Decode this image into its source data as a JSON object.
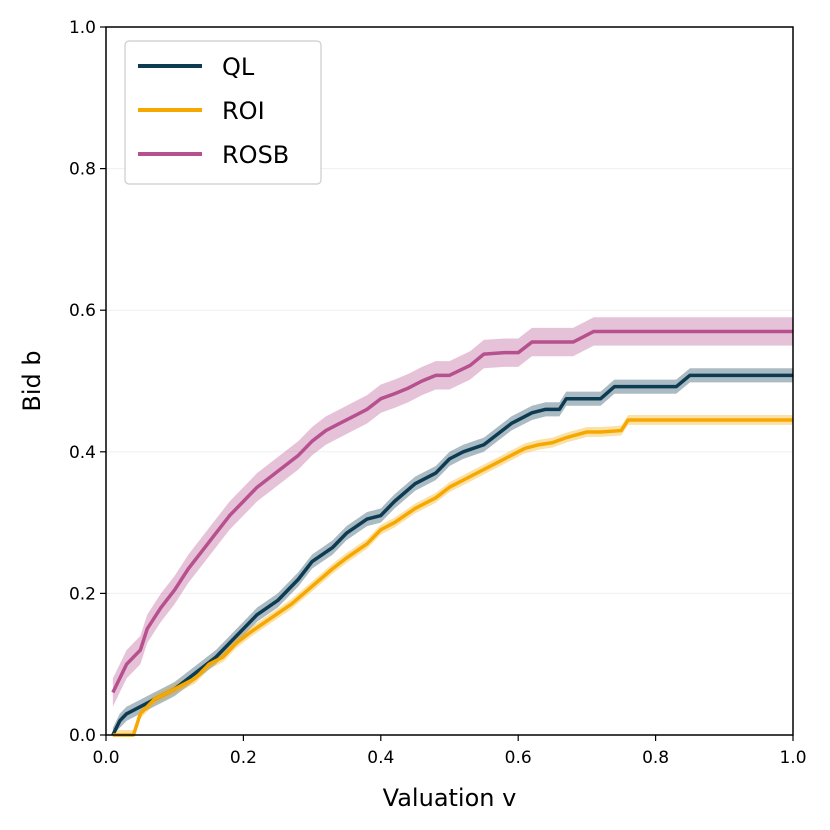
{
  "chart_data": {
    "type": "line",
    "title": "",
    "xlabel": "Valuation v",
    "ylabel": "Bid b",
    "xlim": [
      0.0,
      1.0
    ],
    "ylim": [
      0.0,
      1.0
    ],
    "xticks": [
      "0.0",
      "0.2",
      "0.4",
      "0.6",
      "0.8",
      "1.0"
    ],
    "yticks": [
      "0.0",
      "0.2",
      "0.4",
      "0.6",
      "0.8",
      "1.0"
    ],
    "grid": "horizontal, faint",
    "legend_position": "top-left",
    "series": [
      {
        "name": "QL",
        "color": "#0d3b52",
        "band": 0.01,
        "x": [
          0.01,
          0.02,
          0.03,
          0.05,
          0.07,
          0.09,
          0.1,
          0.12,
          0.14,
          0.16,
          0.18,
          0.2,
          0.22,
          0.25,
          0.28,
          0.3,
          0.33,
          0.35,
          0.38,
          0.4,
          0.42,
          0.45,
          0.48,
          0.5,
          0.52,
          0.55,
          0.57,
          0.59,
          0.6,
          0.62,
          0.64,
          0.66,
          0.67,
          0.7,
          0.72,
          0.74,
          0.76,
          0.8,
          0.83,
          0.85,
          1.0
        ],
        "y": [
          0.0,
          0.02,
          0.03,
          0.04,
          0.05,
          0.06,
          0.065,
          0.08,
          0.095,
          0.11,
          0.13,
          0.15,
          0.17,
          0.19,
          0.22,
          0.245,
          0.265,
          0.285,
          0.305,
          0.31,
          0.33,
          0.355,
          0.37,
          0.39,
          0.4,
          0.41,
          0.425,
          0.44,
          0.445,
          0.455,
          0.46,
          0.46,
          0.475,
          0.475,
          0.475,
          0.492,
          0.492,
          0.492,
          0.492,
          0.508,
          0.508
        ]
      },
      {
        "name": "ROI",
        "color": "#f6a800",
        "band": 0.007,
        "x": [
          0.01,
          0.04,
          0.05,
          0.06,
          0.07,
          0.09,
          0.11,
          0.13,
          0.15,
          0.17,
          0.19,
          0.21,
          0.24,
          0.27,
          0.3,
          0.33,
          0.35,
          0.38,
          0.4,
          0.42,
          0.45,
          0.48,
          0.5,
          0.52,
          0.55,
          0.57,
          0.59,
          0.61,
          0.63,
          0.65,
          0.67,
          0.7,
          0.72,
          0.75,
          0.76,
          0.78,
          0.8,
          1.0
        ],
        "y": [
          0.0,
          0.0,
          0.03,
          0.04,
          0.05,
          0.06,
          0.07,
          0.08,
          0.1,
          0.11,
          0.13,
          0.145,
          0.165,
          0.185,
          0.21,
          0.235,
          0.25,
          0.27,
          0.29,
          0.3,
          0.32,
          0.335,
          0.35,
          0.36,
          0.375,
          0.385,
          0.395,
          0.405,
          0.41,
          0.413,
          0.42,
          0.428,
          0.428,
          0.43,
          0.445,
          0.445,
          0.445,
          0.445
        ]
      },
      {
        "name": "ROSB",
        "color": "#b6508f",
        "band": 0.02,
        "x": [
          0.01,
          0.02,
          0.03,
          0.05,
          0.06,
          0.08,
          0.1,
          0.12,
          0.14,
          0.16,
          0.18,
          0.2,
          0.22,
          0.24,
          0.26,
          0.28,
          0.3,
          0.32,
          0.34,
          0.36,
          0.38,
          0.4,
          0.42,
          0.44,
          0.46,
          0.48,
          0.5,
          0.53,
          0.55,
          0.58,
          0.6,
          0.62,
          0.65,
          0.68,
          0.71,
          0.8,
          1.0
        ],
        "y": [
          0.06,
          0.08,
          0.1,
          0.12,
          0.15,
          0.18,
          0.205,
          0.235,
          0.26,
          0.285,
          0.31,
          0.33,
          0.35,
          0.365,
          0.38,
          0.395,
          0.415,
          0.43,
          0.44,
          0.45,
          0.46,
          0.475,
          0.482,
          0.49,
          0.5,
          0.508,
          0.508,
          0.522,
          0.538,
          0.54,
          0.54,
          0.555,
          0.555,
          0.555,
          0.57,
          0.57,
          0.57
        ]
      }
    ]
  }
}
